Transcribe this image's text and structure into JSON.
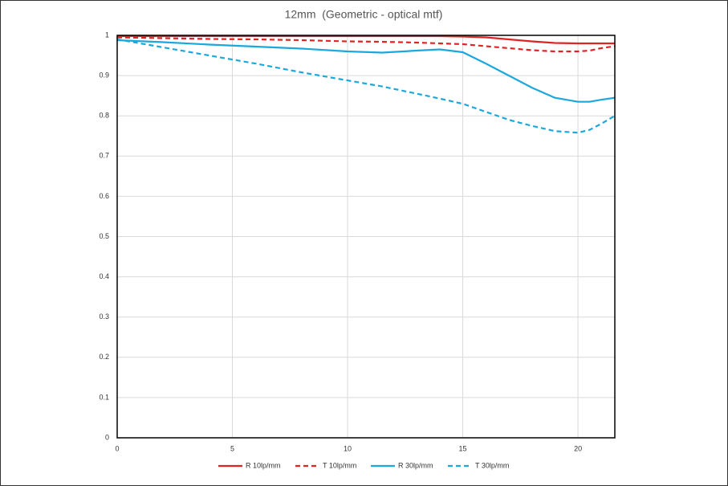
{
  "chart_data": {
    "type": "line",
    "title": "12mm  (Geometric - optical mtf)",
    "x": [
      0,
      2,
      4,
      6,
      8,
      10,
      11.5,
      13,
      14,
      15,
      16,
      17,
      18,
      19,
      20,
      20.5,
      21,
      21.6
    ],
    "xlim": [
      0,
      21.6
    ],
    "xticks": [
      0,
      5,
      10,
      15,
      20
    ],
    "ylim": [
      0,
      1
    ],
    "yticks": [
      0,
      0.1,
      0.2,
      0.3,
      0.4,
      0.5,
      0.6,
      0.7,
      0.8,
      0.9,
      1
    ],
    "grid": true,
    "legend": "bottom",
    "series": [
      {
        "name": "R 10lp/mm",
        "color": "#e02424",
        "style": "solid",
        "values": [
          0.998,
          0.998,
          0.998,
          0.998,
          0.998,
          0.998,
          0.998,
          0.998,
          0.998,
          0.997,
          0.995,
          0.99,
          0.985,
          0.981,
          0.98,
          0.98,
          0.98,
          0.98
        ]
      },
      {
        "name": "T 10lp/mm",
        "color": "#e02424",
        "style": "dashed",
        "values": [
          0.995,
          0.993,
          0.991,
          0.99,
          0.988,
          0.985,
          0.984,
          0.982,
          0.98,
          0.978,
          0.973,
          0.968,
          0.963,
          0.96,
          0.96,
          0.962,
          0.968,
          0.973
        ]
      },
      {
        "name": "R 30lp/mm",
        "color": "#1ba8dc",
        "style": "solid",
        "values": [
          0.988,
          0.983,
          0.977,
          0.972,
          0.967,
          0.96,
          0.957,
          0.962,
          0.965,
          0.958,
          0.93,
          0.9,
          0.87,
          0.845,
          0.835,
          0.835,
          0.84,
          0.845
        ]
      },
      {
        "name": "T 30lp/mm",
        "color": "#1ba8dc",
        "style": "dashed",
        "values": [
          0.99,
          0.97,
          0.95,
          0.93,
          0.908,
          0.888,
          0.873,
          0.855,
          0.843,
          0.83,
          0.81,
          0.79,
          0.775,
          0.762,
          0.758,
          0.765,
          0.78,
          0.8
        ]
      }
    ]
  }
}
